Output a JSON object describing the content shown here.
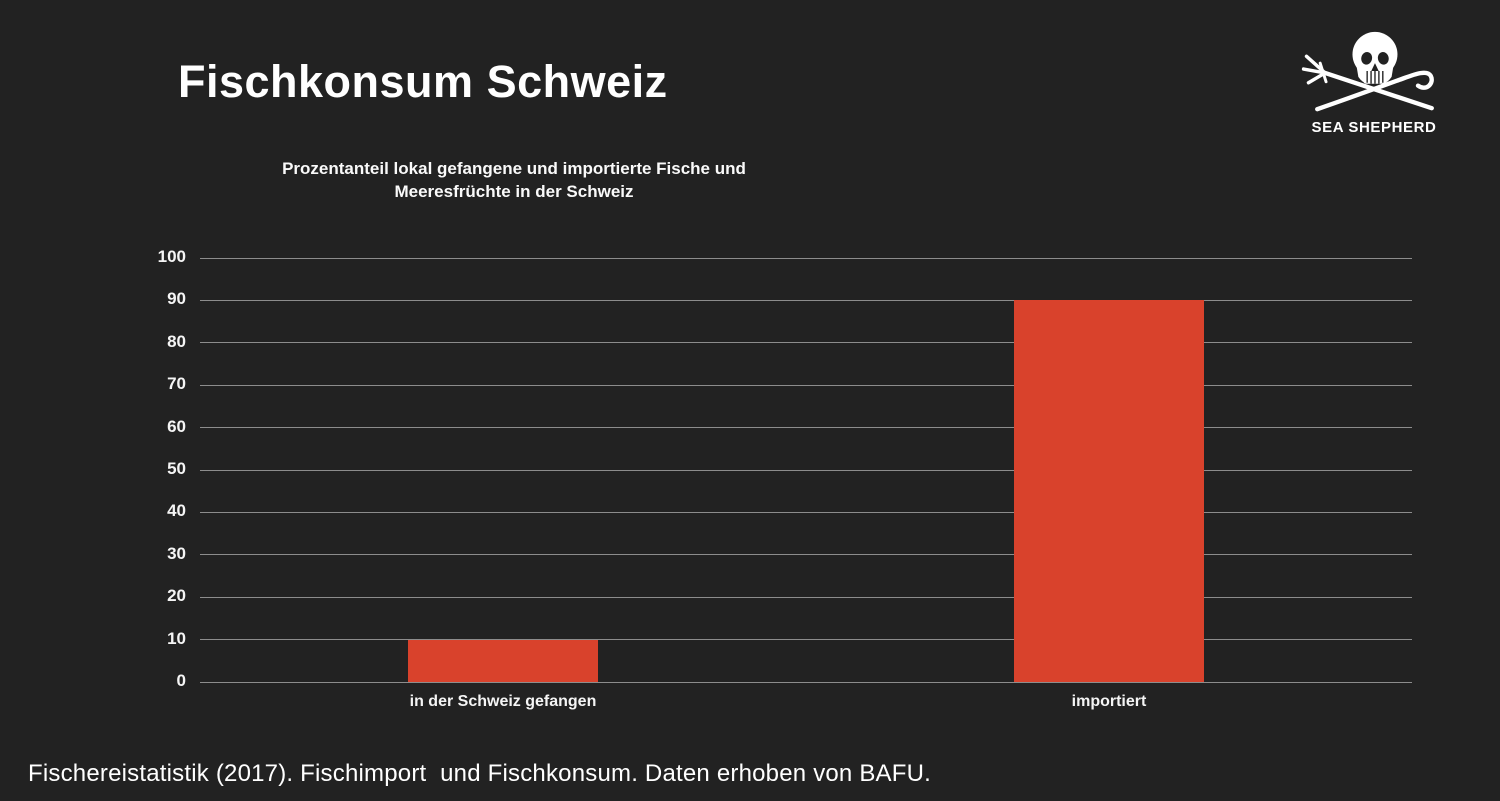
{
  "page": {
    "title": "Fischkonsum Schweiz",
    "subtitle_line1": "Prozentanteil lokal gefangene und importierte Fische und",
    "subtitle_line2": "Meeresfrüchte in der Schweiz",
    "footer": "Fischereistatistik (2017). Fischimport  und Fischkonsum. Daten erhoben von BAFU."
  },
  "logo": {
    "label": "SEA SHEPHERD"
  },
  "colors": {
    "background": "#222222",
    "bar": "#d9422c",
    "gridline": "#8d8d8d",
    "text": "#ffffff"
  },
  "chart_data": {
    "type": "bar",
    "title": "Prozentanteil lokal gefangene und importierte Fische und Meeresfrüchte in der Schweiz",
    "categories": [
      "in der Schweiz gefangen",
      "importiert"
    ],
    "values": [
      10,
      90
    ],
    "xlabel": "",
    "ylabel": "",
    "ylim": [
      0,
      100
    ],
    "ytick_step": 10,
    "grid": true,
    "legend": "none",
    "bar_color": "#d9422c"
  }
}
